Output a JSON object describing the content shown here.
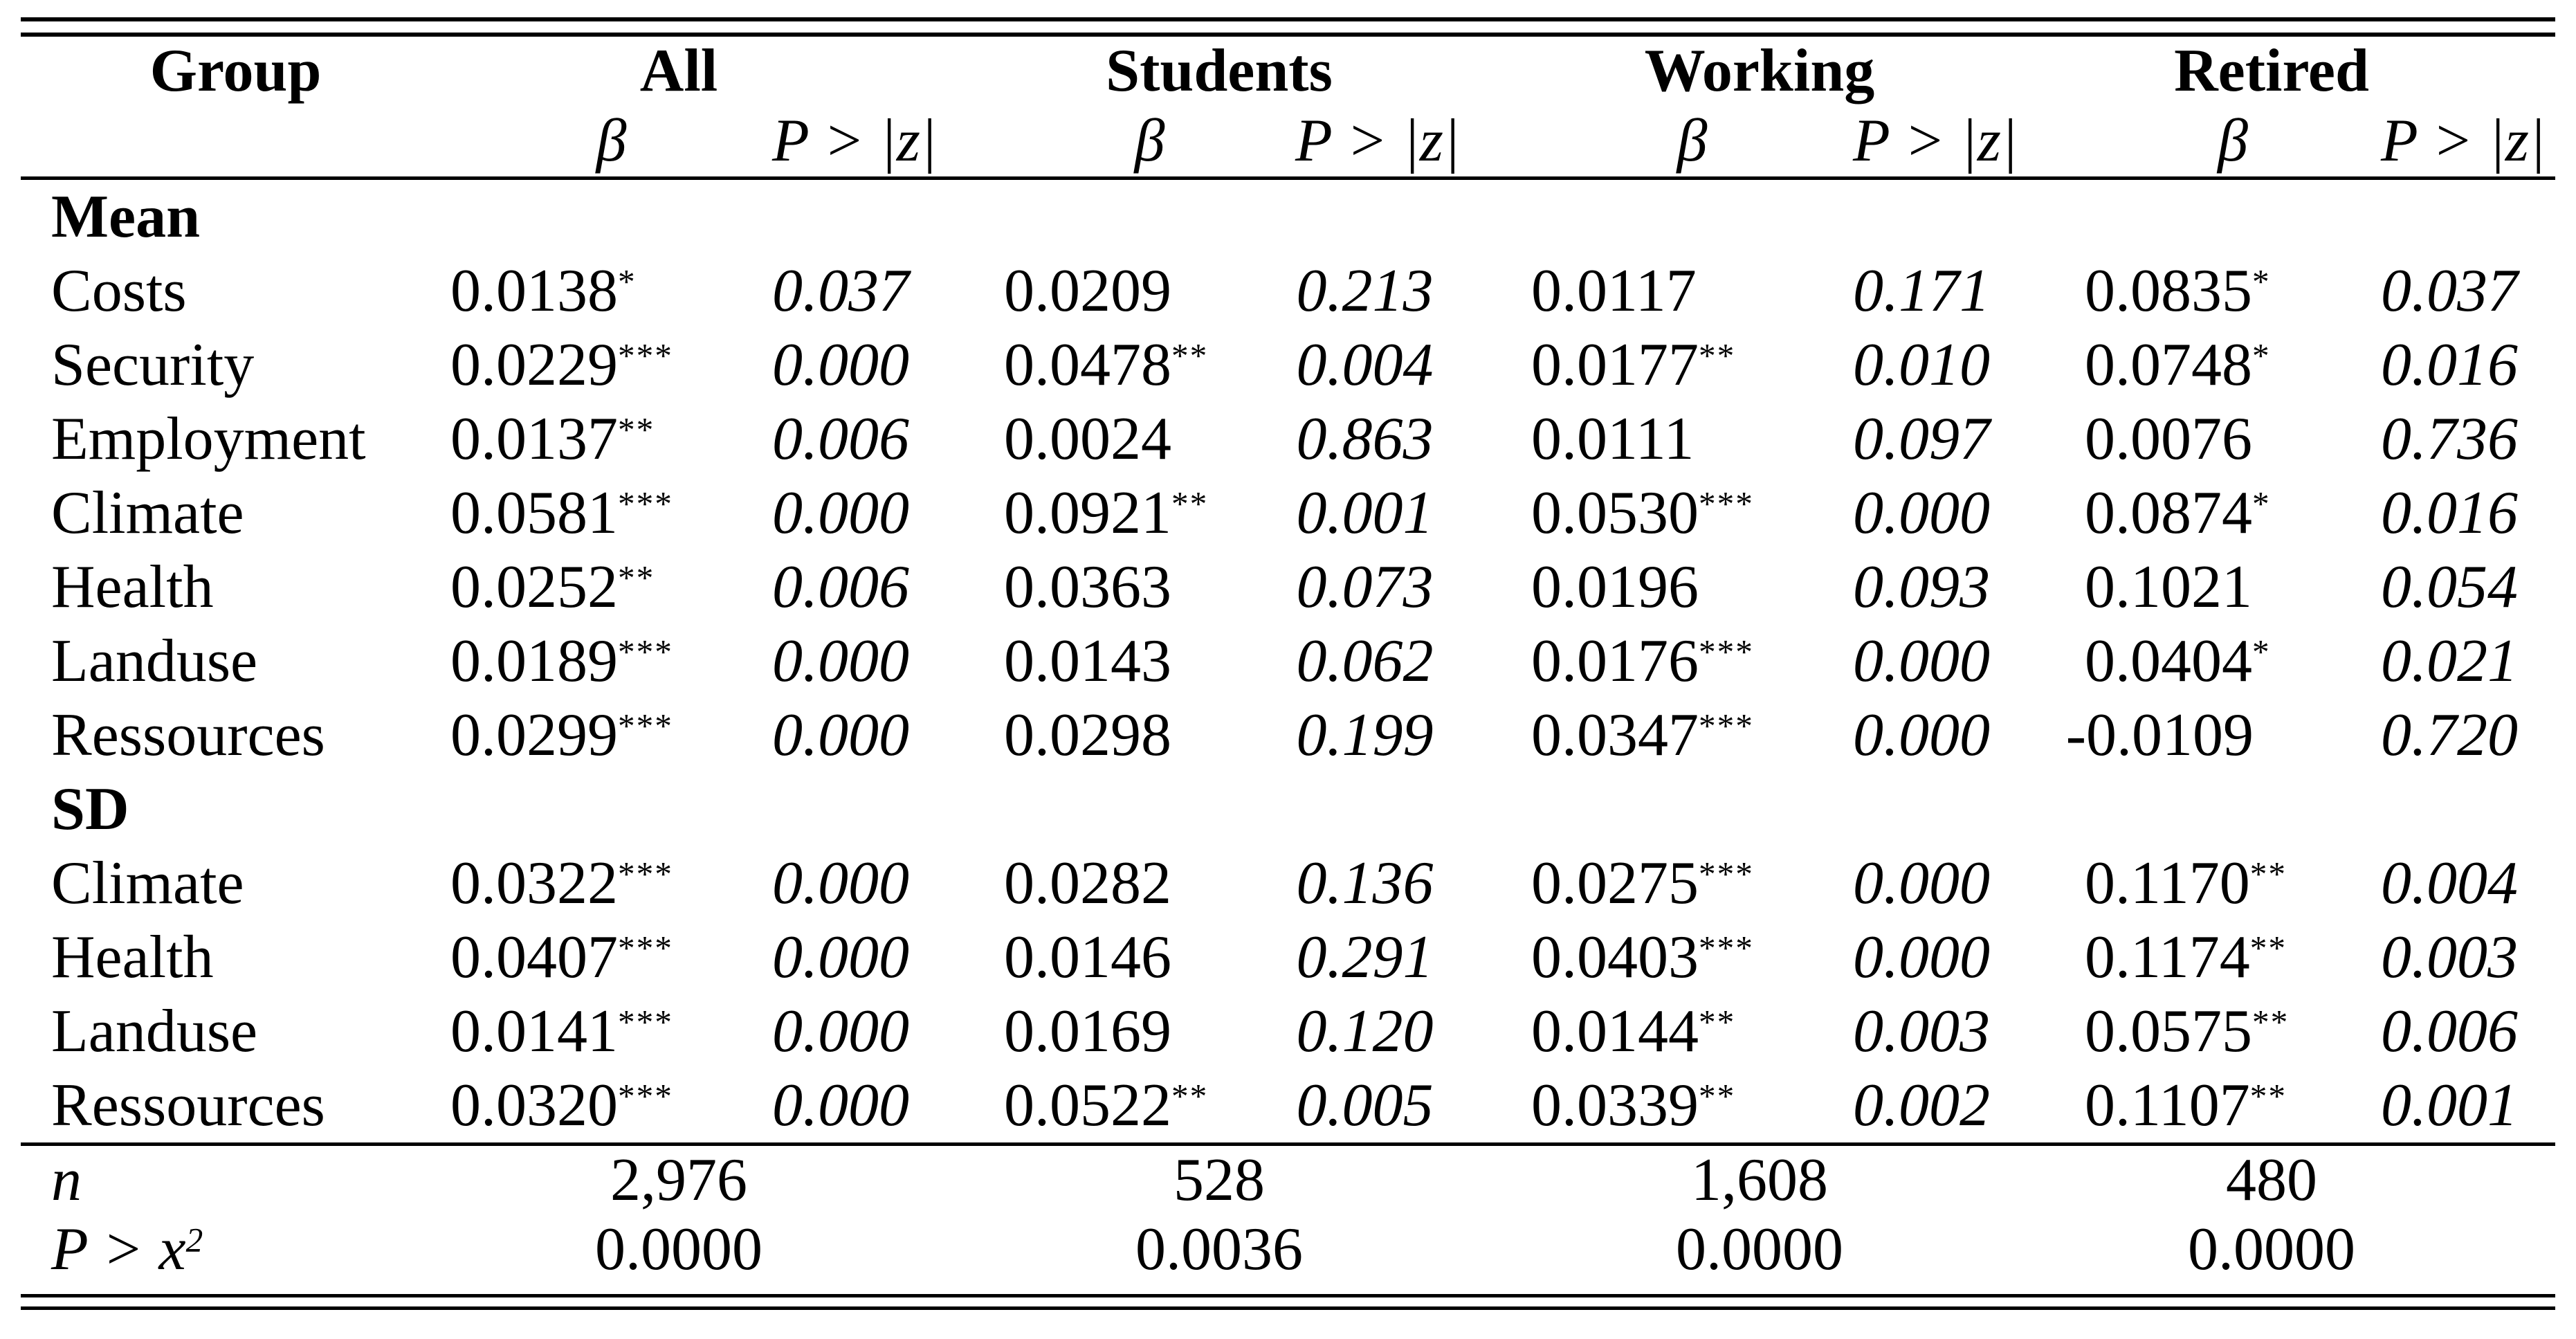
{
  "header": {
    "group": "Group",
    "groups": [
      "All",
      "Students",
      "Working",
      "Retired"
    ],
    "beta": "β",
    "p": "P > |z|"
  },
  "sections": [
    {
      "title": "Mean",
      "rows": [
        {
          "label": "Costs",
          "cells": [
            {
              "b": "0.0138",
              "s": "*",
              "p": "0.037"
            },
            {
              "b": "0.0209",
              "s": "",
              "p": "0.213"
            },
            {
              "b": "0.0117",
              "s": "",
              "p": "0.171"
            },
            {
              "b": "0.0835",
              "s": "*",
              "p": "0.037"
            }
          ]
        },
        {
          "label": "Security",
          "cells": [
            {
              "b": "0.0229",
              "s": "***",
              "p": "0.000"
            },
            {
              "b": "0.0478",
              "s": "**",
              "p": "0.004"
            },
            {
              "b": "0.0177",
              "s": "**",
              "p": "0.010"
            },
            {
              "b": "0.0748",
              "s": "*",
              "p": "0.016"
            }
          ]
        },
        {
          "label": "Employment",
          "cells": [
            {
              "b": "0.0137",
              "s": "**",
              "p": "0.006"
            },
            {
              "b": "0.0024",
              "s": "",
              "p": "0.863"
            },
            {
              "b": "0.0111",
              "s": "",
              "p": "0.097"
            },
            {
              "b": "0.0076",
              "s": "",
              "p": "0.736"
            }
          ]
        },
        {
          "label": "Climate",
          "cells": [
            {
              "b": "0.0581",
              "s": "***",
              "p": "0.000"
            },
            {
              "b": "0.0921",
              "s": "**",
              "p": "0.001"
            },
            {
              "b": "0.0530",
              "s": "***",
              "p": "0.000"
            },
            {
              "b": "0.0874",
              "s": "*",
              "p": "0.016"
            }
          ]
        },
        {
          "label": "Health",
          "cells": [
            {
              "b": "0.0252",
              "s": "**",
              "p": "0.006"
            },
            {
              "b": "0.0363",
              "s": "",
              "p": "0.073"
            },
            {
              "b": "0.0196",
              "s": "",
              "p": "0.093"
            },
            {
              "b": "0.1021",
              "s": "",
              "p": "0.054"
            }
          ]
        },
        {
          "label": "Landuse",
          "cells": [
            {
              "b": "0.0189",
              "s": "***",
              "p": "0.000"
            },
            {
              "b": "0.0143",
              "s": "",
              "p": "0.062"
            },
            {
              "b": "0.0176",
              "s": "***",
              "p": "0.000"
            },
            {
              "b": "0.0404",
              "s": "*",
              "p": "0.021"
            }
          ]
        },
        {
          "label": "Ressources",
          "cells": [
            {
              "b": "0.0299",
              "s": "***",
              "p": "0.000"
            },
            {
              "b": "0.0298",
              "s": "",
              "p": "0.199"
            },
            {
              "b": "0.0347",
              "s": "***",
              "p": "0.000"
            },
            {
              "b": "-0.0109",
              "s": "",
              "p": "0.720"
            }
          ]
        }
      ]
    },
    {
      "title": "SD",
      "rows": [
        {
          "label": "Climate",
          "cells": [
            {
              "b": "0.0322",
              "s": "***",
              "p": "0.000"
            },
            {
              "b": "0.0282",
              "s": "",
              "p": "0.136"
            },
            {
              "b": "0.0275",
              "s": "***",
              "p": "0.000"
            },
            {
              "b": "0.1170",
              "s": "**",
              "p": "0.004"
            }
          ]
        },
        {
          "label": "Health",
          "cells": [
            {
              "b": "0.0407",
              "s": "***",
              "p": "0.000"
            },
            {
              "b": "0.0146",
              "s": "",
              "p": "0.291"
            },
            {
              "b": "0.0403",
              "s": "***",
              "p": "0.000"
            },
            {
              "b": "0.1174",
              "s": "**",
              "p": "0.003"
            }
          ]
        },
        {
          "label": "Landuse",
          "cells": [
            {
              "b": "0.0141",
              "s": "***",
              "p": "0.000"
            },
            {
              "b": "0.0169",
              "s": "",
              "p": "0.120"
            },
            {
              "b": "0.0144",
              "s": "**",
              "p": "0.003"
            },
            {
              "b": "0.0575",
              "s": "**",
              "p": "0.006"
            }
          ]
        },
        {
          "label": "Ressources",
          "cells": [
            {
              "b": "0.0320",
              "s": "***",
              "p": "0.000"
            },
            {
              "b": "0.0522",
              "s": "**",
              "p": "0.005"
            },
            {
              "b": "0.0339",
              "s": "**",
              "p": "0.002"
            },
            {
              "b": "0.1107",
              "s": "**",
              "p": "0.001"
            }
          ]
        }
      ]
    }
  ],
  "footer": {
    "n_label": "n",
    "n": [
      "2,976",
      "528",
      "1,608",
      "480"
    ],
    "chi_label_base": "P > x",
    "chi_label_sup": "2",
    "chi": [
      "0.0000",
      "0.0036",
      "0.0000",
      "0.0000"
    ]
  }
}
